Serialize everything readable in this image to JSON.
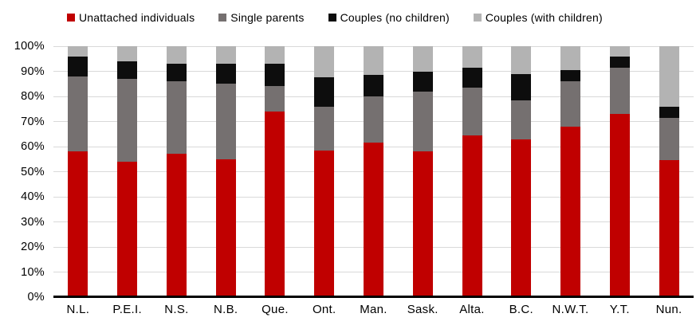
{
  "chart_data": {
    "type": "bar",
    "stacked": true,
    "percent_stacked": true,
    "title": "",
    "xlabel": "",
    "ylabel": "",
    "ylim": [
      0,
      100
    ],
    "grid": true,
    "legend_position": "top",
    "categories": [
      "N.L.",
      "P.E.I.",
      "N.S.",
      "N.B.",
      "Que.",
      "Ont.",
      "Man.",
      "Sask.",
      "Alta.",
      "B.C.",
      "N.W.T.",
      "Y.T.",
      "Nun."
    ],
    "series": [
      {
        "name": "Unattached individuals",
        "color": "#C00000",
        "values": [
          58,
          54,
          57,
          55,
          74,
          58.5,
          61.5,
          58,
          64.5,
          63,
          68,
          73,
          54.5
        ]
      },
      {
        "name": "Single parents",
        "color": "#757070",
        "values": [
          30,
          33,
          29,
          30,
          10,
          17.5,
          18.5,
          24,
          19,
          15.5,
          18,
          18.5,
          17
        ]
      },
      {
        "name": "Couples (no children)",
        "color": "#0d0d0d",
        "values": [
          8,
          7,
          7,
          8,
          9,
          11.5,
          8.5,
          8,
          8,
          10.5,
          4.5,
          4.5,
          4.5
        ]
      },
      {
        "name": "Couples (with children)",
        "color": "#b3b3b3",
        "values": [
          4,
          6,
          7,
          7,
          7,
          12.5,
          11.5,
          10,
          8.5,
          11,
          9.5,
          4,
          24
        ]
      }
    ],
    "y_ticks": [
      "0%",
      "10%",
      "20%",
      "30%",
      "40%",
      "50%",
      "60%",
      "70%",
      "80%",
      "90%",
      "100%"
    ],
    "gridline_color": "#d9d9d9",
    "axis_color": "#000000",
    "background_color": "#ffffff"
  }
}
